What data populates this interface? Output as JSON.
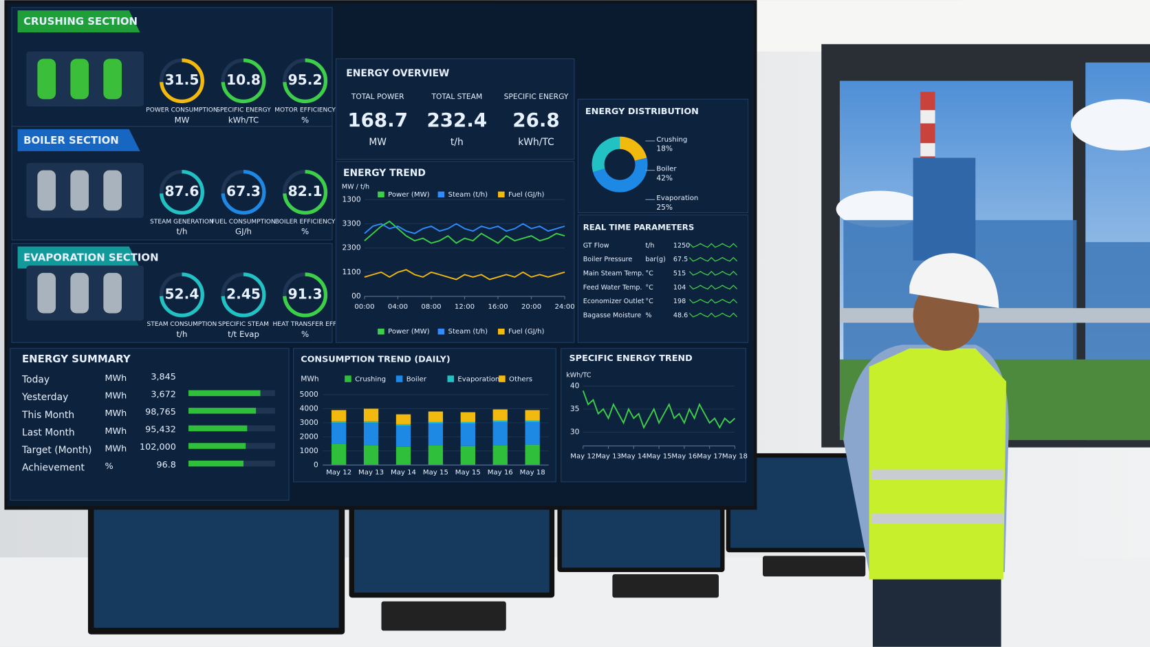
{
  "sections": [
    {
      "title": "CRUSHING SECTION",
      "gauges": [
        {
          "value": 31.5,
          "label": "POWER CONSUMPTION",
          "unit": "MW"
        },
        {
          "value": 10.8,
          "label": "SPECIFIC ENERGY",
          "unit": "kWh/TC"
        },
        {
          "value": 95.2,
          "label": "MOTOR EFFICIENCY",
          "unit": "%"
        }
      ]
    },
    {
      "title": "BOILER SECTION",
      "gauges": [
        {
          "value": 87.6,
          "label": "STEAM GENERATION",
          "unit": "t/h"
        },
        {
          "value": 67.3,
          "label": "FUEL CONSUMPTION",
          "unit": "GJ/h"
        },
        {
          "value": 82.1,
          "label": "BOILER EFFICIENCY",
          "unit": "%"
        }
      ]
    },
    {
      "title": "EVAPORATION SECTION",
      "gauges": [
        {
          "value": 52.4,
          "label": "STEAM CONSUMPTION",
          "unit": "t/h"
        },
        {
          "value": 2.45,
          "label": "SPECIFIC STEAM",
          "unit": "t/t Evap"
        },
        {
          "value": 91.3,
          "label": "HEAT TRANSFER EFF.",
          "unit": "%"
        }
      ]
    }
  ],
  "overview": {
    "title": "ENERGY OVERVIEW",
    "items": [
      {
        "label": "TOTAL POWER",
        "value": 168.7,
        "unit": "MW"
      },
      {
        "label": "TOTAL STEAM",
        "value": 232.4,
        "unit": "t/h"
      },
      {
        "label": "SPECIFIC ENERGY",
        "value": 26.8,
        "unit": "kWh/TC"
      }
    ]
  },
  "realtime": {
    "title": "REAL TIME PARAMETERS",
    "rows": [
      [
        "GT Flow",
        "t/h",
        1250
      ],
      [
        "Boiler Pressure",
        "bar(g)",
        67.5
      ],
      [
        "Main Steam Temp.",
        "°C",
        515
      ],
      [
        "Feed Water Temp.",
        "°C",
        104
      ],
      [
        "Economizer Outlet",
        "°C",
        198
      ],
      [
        "Bagasse Moisture",
        "%",
        48.6
      ]
    ]
  },
  "summary": {
    "title": "ENERGY SUMMARY",
    "rows": [
      [
        "Today",
        "MWh",
        "3,845"
      ],
      [
        "Yesterday",
        "MWh",
        "3,672"
      ],
      [
        "This Month",
        "MWh",
        "98,765"
      ],
      [
        "Last Month",
        "MWh",
        "95,432"
      ],
      [
        "Target (Month)",
        "MWh",
        "102,000"
      ],
      [
        "Achievement",
        "%",
        96.8
      ]
    ]
  },
  "chart_data": [
    {
      "type": "line",
      "title": "ENERGY TREND",
      "y_label": "MW / t/h",
      "x": [
        0,
        1,
        2,
        3,
        4,
        5,
        6,
        7,
        8,
        9,
        10,
        11,
        12,
        13,
        14,
        15,
        16,
        17,
        18,
        19,
        20,
        21,
        22,
        23,
        24
      ],
      "xlim": [
        0,
        24
      ],
      "xticks": [
        {
          "value": 0,
          "label": "00:00"
        },
        {
          "value": 4,
          "label": "04:00"
        },
        {
          "value": 8,
          "label": "08:00"
        },
        {
          "value": 12,
          "label": "12:00"
        },
        {
          "value": 16,
          "label": "16:00"
        },
        {
          "value": 20,
          "label": "20:00"
        },
        {
          "value": 24,
          "label": "24:00"
        }
      ],
      "ylim": [
        0,
        4
      ],
      "yticks": [
        {
          "value": 0,
          "label": "00"
        },
        {
          "value": 1,
          "label": "1100"
        },
        {
          "value": 2,
          "label": "2300"
        },
        {
          "value": 3,
          "label": "3300"
        },
        {
          "value": 4,
          "label": "1300"
        }
      ],
      "series": [
        {
          "name": "Power (MW)",
          "color": "#3ecf4a",
          "values": [
            2.3,
            2.6,
            2.9,
            3.1,
            2.8,
            2.5,
            2.3,
            2.4,
            2.2,
            2.3,
            2.5,
            2.2,
            2.4,
            2.3,
            2.6,
            2.4,
            2.2,
            2.5,
            2.3,
            2.4,
            2.5,
            2.3,
            2.4,
            2.6,
            2.5
          ]
        },
        {
          "name": "Steam (t/h)",
          "color": "#2f8cff",
          "values": [
            2.6,
            2.9,
            3.0,
            2.8,
            2.9,
            2.7,
            2.6,
            2.8,
            2.9,
            2.7,
            2.8,
            3.0,
            2.8,
            2.7,
            2.9,
            2.8,
            2.9,
            2.7,
            2.8,
            3.0,
            2.8,
            2.9,
            2.7,
            2.8,
            2.9
          ]
        },
        {
          "name": "Fuel (GJ/h)",
          "color": "#f2b90f",
          "values": [
            0.8,
            0.9,
            1.0,
            0.8,
            1.0,
            1.1,
            0.9,
            0.8,
            1.0,
            0.9,
            0.8,
            0.7,
            0.9,
            0.8,
            0.9,
            0.7,
            0.8,
            0.9,
            0.8,
            1.0,
            0.8,
            0.9,
            0.8,
            0.9,
            1.0
          ]
        }
      ]
    },
    {
      "type": "donut",
      "title": "ENERGY DISTRIBUTION",
      "categories": [
        "Crushing",
        "Boiler",
        "Evaporation"
      ],
      "values": [
        18,
        42,
        25
      ],
      "value_labels": [
        "18%",
        "42%",
        "25%"
      ],
      "colors": [
        "#f2b90f",
        "#1e88e5",
        "#22c1c3"
      ]
    },
    {
      "type": "stacked_bar",
      "title": "CONSUMPTION TREND (DAILY)",
      "y_label": "MWh",
      "categories": [
        "May 12",
        "May 13",
        "May 14",
        "May 15",
        "May 15",
        "May 16",
        "May 18"
      ],
      "ylim": [
        0,
        5000
      ],
      "yticks": [
        0,
        1000,
        2000,
        3000,
        4000,
        5000
      ],
      "series": [
        {
          "name": "Crushing",
          "color": "#2fbf3a",
          "values": [
            1500,
            1400,
            1300,
            1400,
            1350,
            1400,
            1450
          ]
        },
        {
          "name": "Boiler",
          "color": "#1e88e5",
          "values": [
            1500,
            1600,
            1500,
            1550,
            1600,
            1650,
            1600
          ]
        },
        {
          "name": "Evaporation",
          "color": "#22c1c3",
          "values": [
            100,
            100,
            100,
            100,
            100,
            100,
            100
          ]
        },
        {
          "name": "Others",
          "color": "#f2b90f",
          "values": [
            800,
            900,
            700,
            750,
            700,
            800,
            750
          ]
        }
      ]
    },
    {
      "type": "line",
      "title": "SPECIFIC ENERGY TREND",
      "y_label": "kWh/TC",
      "x": [
        0,
        1,
        2,
        3,
        4,
        5,
        6,
        7,
        8,
        9,
        10,
        11,
        12,
        13,
        14,
        15,
        16,
        17,
        18,
        19,
        20,
        21,
        22,
        23,
        24,
        25,
        26,
        27,
        28,
        29,
        30
      ],
      "xlim": [
        0,
        30
      ],
      "xticks": [
        {
          "value": 0,
          "label": "May 12"
        },
        {
          "value": 5,
          "label": "May 13"
        },
        {
          "value": 10,
          "label": "May 14"
        },
        {
          "value": 15,
          "label": "May 15"
        },
        {
          "value": 20,
          "label": "May 16"
        },
        {
          "value": 25,
          "label": "May 17"
        },
        {
          "value": 30,
          "label": "May 18"
        }
      ],
      "ylim": [
        27,
        41
      ],
      "yticks": [
        30,
        35,
        40
      ],
      "series": [
        {
          "color": "#3ecf4a",
          "values": [
            39,
            36,
            37,
            34,
            35,
            33,
            36,
            34,
            32,
            35,
            33,
            34,
            31,
            33,
            35,
            32,
            34,
            36,
            33,
            34,
            32,
            35,
            33,
            36,
            34,
            32,
            33,
            31,
            33,
            32,
            33
          ]
        }
      ]
    }
  ]
}
